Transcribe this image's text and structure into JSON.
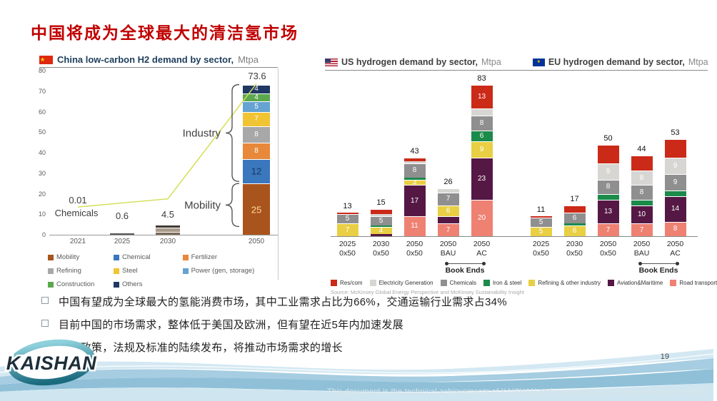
{
  "slide": {
    "title": "中国将成为全球最大的清洁氢市场",
    "page_number": "19",
    "footer_note": "This document is the technical achievements of KAISHAN and may not be transmitted without permission",
    "logo_text": "KAISHAN",
    "accent_red": "#c00000"
  },
  "bullets": [
    "中国有望成为全球最大的氢能消费市场，其中工业需求占比为66%，交通运输行业需求占34%",
    "目前中国的市场需求，整体低于美国及欧洲，但有望在近5年内加速发展",
    "相关政策，法规及标准的陆续发布，将推动市场需求的增长"
  ],
  "chart_data": [
    {
      "id": "china_demand",
      "type": "bar",
      "title": "China low-carbon H2 demand by sector,",
      "unit": "Mtpa",
      "ylim": [
        0,
        80
      ],
      "yticks": [
        0,
        10,
        20,
        30,
        40,
        50,
        60,
        70,
        80
      ],
      "categories": [
        "2021",
        "2025",
        "2030",
        "2050"
      ],
      "totals": [
        0.01,
        0.6,
        4.5,
        73.6
      ],
      "total_labels": [
        "0.01",
        "0.6",
        "4.5",
        "73.6"
      ],
      "annotation_2021": "Chemicals",
      "bars": [
        {
          "category": "2021",
          "total": 0.01,
          "segments": []
        },
        {
          "category": "2025",
          "total": 0.6,
          "segments": [
            {
              "name": "Others",
              "value": 0.6,
              "color": "#5a5a5a"
            }
          ]
        },
        {
          "category": "2030",
          "total": 4.5,
          "segments": [
            {
              "name": "Mobility",
              "value": 1.5,
              "color": "#7a6a58"
            },
            {
              "name": "Chemical",
              "value": 2,
              "color": "#a89a8a"
            },
            {
              "name": "Others",
              "value": 1,
              "color": "#3f3831"
            }
          ]
        },
        {
          "category": "2050",
          "total": 73.6,
          "segments": [
            {
              "name": "Mobility",
              "value": 25,
              "label": "25",
              "color": "#a9541c",
              "label_color": "#ffd9a0",
              "big": true
            },
            {
              "name": "Chemical",
              "value": 12,
              "label": "12",
              "color": "#3a77bd",
              "label_color": "#17375e",
              "big": true
            },
            {
              "name": "Fertilizer",
              "value": 8,
              "label": "8",
              "color": "#e8883a",
              "label_color": "#ffffff"
            },
            {
              "name": "Refining",
              "value": 8,
              "label": "8",
              "color": "#a8a8a8",
              "label_color": "#ffffff"
            },
            {
              "name": "Steel",
              "value": 7,
              "label": "7",
              "color": "#f0c432",
              "label_color": "#ffffff"
            },
            {
              "name": "Power (gen, storage)",
              "value": 5,
              "label": "5",
              "color": "#66a3d2",
              "label_color": "#ffffff"
            },
            {
              "name": "Construction",
              "value": 4,
              "label": "4",
              "color": "#5ba84f",
              "label_color": "#ffffff"
            },
            {
              "name": "Others",
              "value": 4,
              "label": "4",
              "color": "#1f3864",
              "label_color": "#ffffff"
            }
          ]
        }
      ],
      "line": {
        "color": "#d4de55",
        "values": [
          13.5,
          15.5,
          17.5,
          73.6
        ]
      },
      "brackets": [
        {
          "label": "Industry",
          "from": 26,
          "to": 73.2
        },
        {
          "label": "Mobility",
          "from": 4,
          "to": 25
        }
      ],
      "legend": [
        {
          "label": "Mobility",
          "color": "#a9541c"
        },
        {
          "label": "Chemical",
          "color": "#3a77bd"
        },
        {
          "label": "Fertilizer",
          "color": "#e8883a"
        },
        {
          "label": "Refining",
          "color": "#a8a8a8"
        },
        {
          "label": "Steel",
          "color": "#f0c432"
        },
        {
          "label": "Power (gen, storage)",
          "color": "#66a3d2"
        },
        {
          "label": "Construction",
          "color": "#5ba84f"
        },
        {
          "label": "Others",
          "color": "#1f3864"
        }
      ]
    },
    {
      "id": "us_eu_demand",
      "type": "bar",
      "titles": [
        {
          "title": "US hydrogen demand by sector,",
          "unit": "Mtpa"
        },
        {
          "title": "EU hydrogen demand by sector,",
          "unit": "Mtpa"
        }
      ],
      "palette": {
        "Res/com": "#cb2a18",
        "Electricity Generation": "#d8d6d3",
        "Chemicals": "#8f8f8f",
        "Iron & steel": "#1b8a4a",
        "Refining & other industry": "#e9cf43",
        "Aviation&Maritime": "#551845",
        "Road transport": "#ee8172"
      },
      "legend_order": [
        "Res/com",
        "Electricity Generation",
        "Chemicals",
        "Iron & steel",
        "Refining & other industry",
        "Aviation&Maritime",
        "Road transport"
      ],
      "book_ends_label": "Book Ends",
      "source": "Source: McKinsey Global Energy Perspective and McKinsey Sustainability Insight",
      "groups": [
        {
          "region": "US",
          "bars": [
            {
              "category": [
                "2025",
                "0x50"
              ],
              "total": 13,
              "segments": [
                [
                  "Refining & other industry",
                  7,
                  "7"
                ],
                [
                  "Chemicals",
                  5,
                  "5"
                ],
                [
                  "Res/com",
                  1,
                  ""
                ]
              ]
            },
            {
              "category": [
                "2030",
                "0x50"
              ],
              "total": 15,
              "segments": [
                [
                  "Aviation&Maritime",
                  1,
                  ""
                ],
                [
                  "Refining & other industry",
                  4,
                  "4"
                ],
                [
                  "Iron & steel",
                  1,
                  ""
                ],
                [
                  "Chemicals",
                  5,
                  "5"
                ],
                [
                  "Electricity Generation",
                  1,
                  ""
                ],
                [
                  "Res/com",
                  3,
                  ""
                ]
              ]
            },
            {
              "category": [
                "2050",
                "0x50"
              ],
              "total": 43,
              "segments": [
                [
                  "Road transport",
                  11,
                  "11"
                ],
                [
                  "Aviation&Maritime",
                  17,
                  "17"
                ],
                [
                  "Refining & other industry",
                  3,
                  "3"
                ],
                [
                  "Iron & steel",
                  1,
                  ""
                ],
                [
                  "Chemicals",
                  8,
                  "8"
                ],
                [
                  "Electricity Generation",
                  1,
                  ""
                ],
                [
                  "Res/com",
                  2,
                  ""
                ]
              ]
            },
            {
              "category": [
                "2050",
                "BAU"
              ],
              "total": 26,
              "segments": [
                [
                  "Road transport",
                  7,
                  "7"
                ],
                [
                  "Aviation&Maritime",
                  4,
                  ""
                ],
                [
                  "Refining & other industry",
                  6,
                  "6"
                ],
                [
                  "Chemicals",
                  7,
                  "7"
                ],
                [
                  "Electricity Generation",
                  2,
                  ""
                ]
              ]
            },
            {
              "category": [
                "2050",
                "AC"
              ],
              "total": 83,
              "segments": [
                [
                  "Road transport",
                  20,
                  "20"
                ],
                [
                  "Aviation&Maritime",
                  23,
                  "23"
                ],
                [
                  "Refining & other industry",
                  9,
                  "9"
                ],
                [
                  "Iron & steel",
                  6,
                  "6"
                ],
                [
                  "Chemicals",
                  8,
                  "8"
                ],
                [
                  "Electricity Generation",
                  4,
                  ""
                ],
                [
                  "Res/com",
                  13,
                  "13"
                ]
              ]
            }
          ]
        },
        {
          "region": "EU",
          "bars": [
            {
              "category": [
                "2025",
                "0x50"
              ],
              "total": 11,
              "segments": [
                [
                  "Refining & other industry",
                  5,
                  "5"
                ],
                [
                  "Chemicals",
                  5,
                  "5"
                ],
                [
                  "Res/com",
                  1,
                  ""
                ]
              ]
            },
            {
              "category": [
                "2030",
                "0x50"
              ],
              "total": 17,
              "segments": [
                [
                  "Refining & other industry",
                  6,
                  "6"
                ],
                [
                  "Iron & steel",
                  1,
                  ""
                ],
                [
                  "Chemicals",
                  6,
                  "6"
                ],
                [
                  "Res/com",
                  4,
                  ""
                ]
              ]
            },
            {
              "category": [
                "2050",
                "0x50"
              ],
              "total": 50,
              "segments": [
                [
                  "Road transport",
                  7,
                  "7"
                ],
                [
                  "Aviation&Maritime",
                  13,
                  "13"
                ],
                [
                  "Iron & steel",
                  3,
                  ""
                ],
                [
                  "Chemicals",
                  8,
                  "8"
                ],
                [
                  "Electricity Generation",
                  9,
                  "9"
                ],
                [
                  "Res/com",
                  10,
                  ""
                ]
              ]
            },
            {
              "category": [
                "2050",
                "BAU"
              ],
              "total": 44,
              "segments": [
                [
                  "Road transport",
                  7,
                  "7"
                ],
                [
                  "Aviation&Maritime",
                  10,
                  "10"
                ],
                [
                  "Iron & steel",
                  3,
                  ""
                ],
                [
                  "Chemicals",
                  8,
                  "8"
                ],
                [
                  "Electricity Generation",
                  8,
                  "8"
                ],
                [
                  "Res/com",
                  8,
                  ""
                ]
              ]
            },
            {
              "category": [
                "2050",
                "AC"
              ],
              "total": 53,
              "segments": [
                [
                  "Road transport",
                  8,
                  "8"
                ],
                [
                  "Aviation&Maritime",
                  14,
                  "14"
                ],
                [
                  "Iron & steel",
                  3,
                  ""
                ],
                [
                  "Chemicals",
                  9,
                  "9"
                ],
                [
                  "Electricity Generation",
                  9,
                  "9"
                ],
                [
                  "Res/com",
                  10,
                  ""
                ]
              ]
            }
          ]
        }
      ]
    }
  ]
}
